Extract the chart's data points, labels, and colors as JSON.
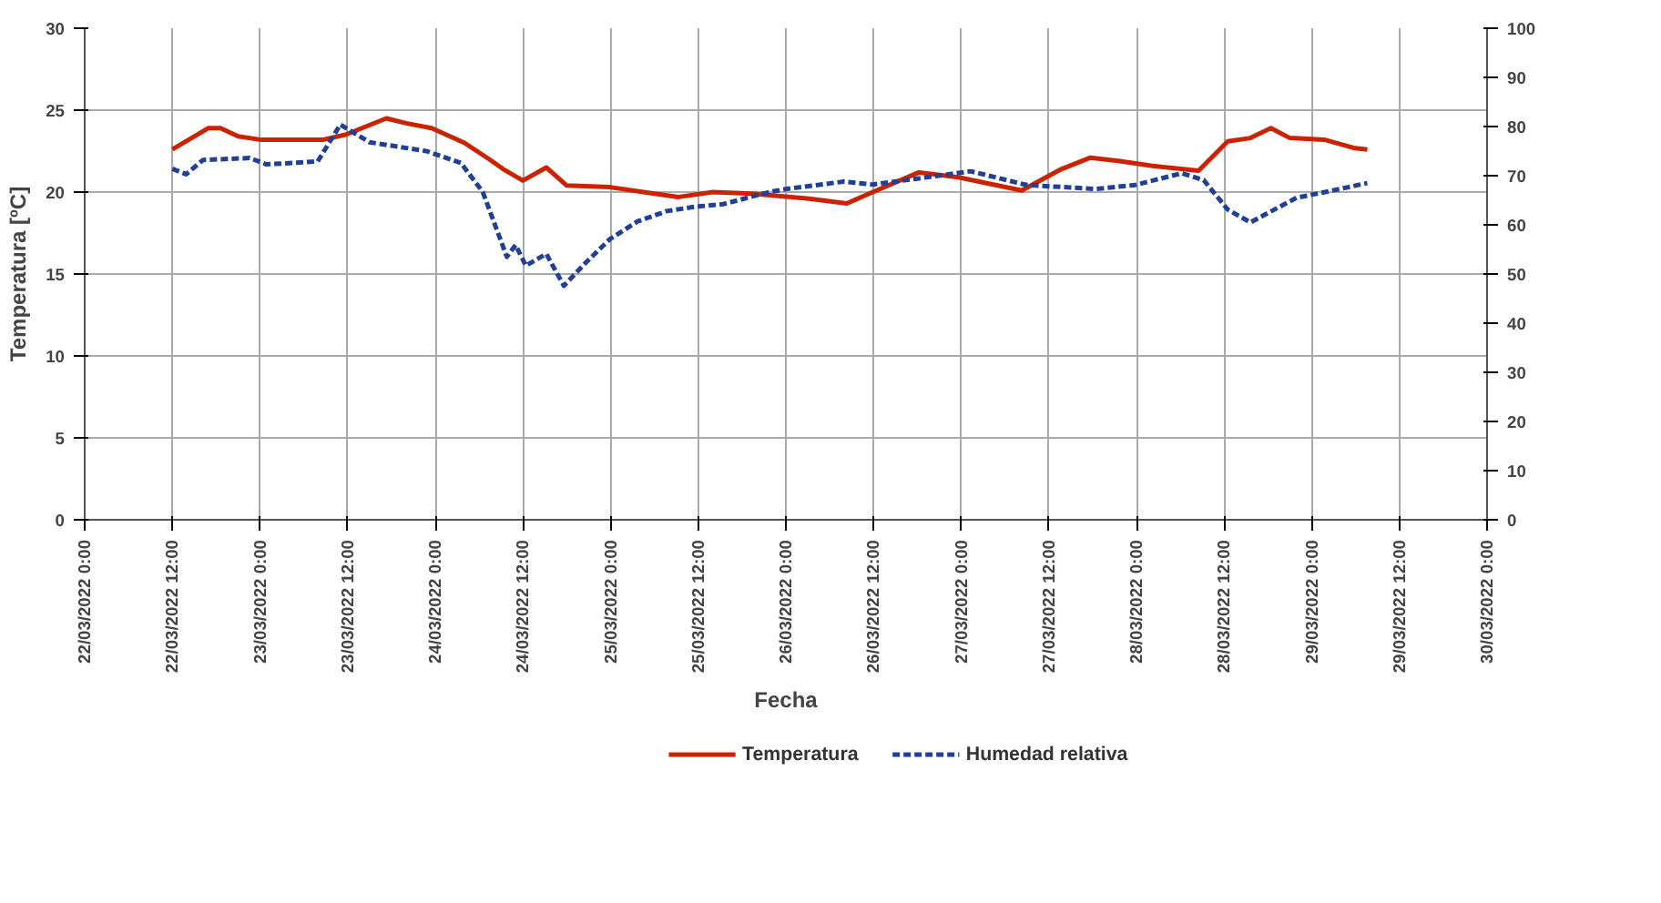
{
  "chart_data": {
    "type": "line",
    "xlabel": "Fecha",
    "ylabel": "Temperatura [ºC]",
    "xlim": [
      "2022-03-22T00:00",
      "2022-03-30T00:00"
    ],
    "xticks": [
      {
        "value": "2022-03-22T00:00",
        "label": "22/03/2022 0:00"
      },
      {
        "value": "2022-03-22T12:00",
        "label": "22/03/2022 12:00"
      },
      {
        "value": "2022-03-23T00:00",
        "label": "23/03/2022 0:00"
      },
      {
        "value": "2022-03-23T12:00",
        "label": "23/03/2022 12:00"
      },
      {
        "value": "2022-03-24T00:00",
        "label": "24/03/2022 0:00"
      },
      {
        "value": "2022-03-24T12:00",
        "label": "24/03/2022 12:00"
      },
      {
        "value": "2022-03-25T00:00",
        "label": "25/03/2022 0:00"
      },
      {
        "value": "2022-03-25T12:00",
        "label": "25/03/2022 12:00"
      },
      {
        "value": "2022-03-26T00:00",
        "label": "26/03/2022 0:00"
      },
      {
        "value": "2022-03-26T12:00",
        "label": "26/03/2022 12:00"
      },
      {
        "value": "2022-03-27T00:00",
        "label": "27/03/2022 0:00"
      },
      {
        "value": "2022-03-27T12:00",
        "label": "27/03/2022 12:00"
      },
      {
        "value": "2022-03-28T00:00",
        "label": "28/03/2022 0:00"
      },
      {
        "value": "2022-03-28T12:00",
        "label": "28/03/2022 12:00"
      },
      {
        "value": "2022-03-29T00:00",
        "label": "29/03/2022 0:00"
      },
      {
        "value": "2022-03-29T12:00",
        "label": "29/03/2022 12:00"
      },
      {
        "value": "2022-03-30T00:00",
        "label": "30/03/2022 0:00"
      }
    ],
    "ylim": [
      0,
      30
    ],
    "yticks": [
      0,
      5,
      10,
      15,
      20,
      25,
      30
    ],
    "y2lim": [
      0,
      100
    ],
    "y2ticks": [
      0,
      10,
      20,
      30,
      40,
      50,
      60,
      70,
      80,
      90,
      100
    ],
    "grid": true,
    "legend": "bottom",
    "series": [
      {
        "name": "Temperatura",
        "color": "#cc2200",
        "line_style": "solid",
        "x": [
          "2022-03-22T12:00",
          "2022-03-22T16:54",
          "2022-03-22T18:36",
          "2022-03-22T21:00",
          "2022-03-23T00:00",
          "2022-03-23T08:42",
          "2022-03-23T11:42",
          "2022-03-23T17:18",
          "2022-03-23T20:00",
          "2022-03-23T23:30",
          "2022-03-24T04:00",
          "2022-03-24T07:24",
          "2022-03-24T09:18",
          "2022-03-24T12:00",
          "2022-03-24T15:12",
          "2022-03-24T18:00",
          "2022-03-24T23:54",
          "2022-03-25T04:30",
          "2022-03-25T09:18",
          "2022-03-25T14:00",
          "2022-03-25T19:24",
          "2022-03-26T03:12",
          "2022-03-26T08:18",
          "2022-03-26T11:54",
          "2022-03-26T18:12",
          "2022-03-26T23:36",
          "2022-03-27T08:18",
          "2022-03-27T13:42",
          "2022-03-27T17:42",
          "2022-03-27T21:30",
          "2022-03-28T02:12",
          "2022-03-28T08:30",
          "2022-03-28T12:30",
          "2022-03-28T15:36",
          "2022-03-28T18:24",
          "2022-03-28T21:00",
          "2022-03-29T01:42",
          "2022-03-29T05:42",
          "2022-03-29T07:36"
        ],
        "values": [
          22.6,
          23.9,
          23.9,
          23.4,
          23.2,
          23.2,
          23.5,
          24.5,
          24.2,
          23.9,
          23.0,
          22.0,
          21.4,
          20.7,
          21.5,
          20.4,
          20.3,
          20.0,
          19.7,
          20.0,
          19.9,
          19.6,
          19.3,
          20.0,
          21.2,
          20.9,
          20.1,
          21.4,
          22.1,
          21.9,
          21.6,
          21.3,
          23.1,
          23.3,
          23.9,
          23.3,
          23.2,
          22.7,
          22.6
        ]
      },
      {
        "name": "Humedad relativa",
        "color": "#1f3f99",
        "line_style": "dashed",
        "axis": "y2",
        "x": [
          "2022-03-22T12:00",
          "2022-03-22T13:54",
          "2022-03-22T16:12",
          "2022-03-22T22:36",
          "2022-03-23T00:54",
          "2022-03-23T07:54",
          "2022-03-23T11:00",
          "2022-03-23T15:00",
          "2022-03-23T22:48",
          "2022-03-24T03:30",
          "2022-03-24T06:30",
          "2022-03-24T09:48",
          "2022-03-24T11:00",
          "2022-03-24T12:24",
          "2022-03-24T15:12",
          "2022-03-24T17:36",
          "2022-03-24T20:36",
          "2022-03-24T23:54",
          "2022-03-25T03:42",
          "2022-03-25T07:42",
          "2022-03-25T11:42",
          "2022-03-25T15:24",
          "2022-03-25T21:48",
          "2022-03-26T00:06",
          "2022-03-26T07:54",
          "2022-03-26T11:54",
          "2022-03-26T18:54",
          "2022-03-27T01:18",
          "2022-03-27T09:00",
          "2022-03-27T18:24",
          "2022-03-27T23:48",
          "2022-03-28T06:12",
          "2022-03-28T09:12",
          "2022-03-28T12:30",
          "2022-03-28T15:36",
          "2022-03-28T21:54",
          "2022-03-29T02:36",
          "2022-03-29T07:36"
        ],
        "values": [
          71.4,
          70.3,
          73.2,
          73.6,
          72.3,
          72.9,
          80.4,
          76.8,
          75.0,
          72.6,
          66.7,
          53.5,
          55.9,
          51.7,
          54.1,
          47.6,
          52.3,
          57.1,
          60.7,
          62.8,
          63.7,
          64.2,
          66.7,
          67.3,
          68.8,
          68.2,
          69.6,
          70.9,
          68.1,
          67.3,
          68.1,
          70.5,
          69.1,
          63.1,
          60.5,
          65.5,
          66.9,
          68.5
        ]
      }
    ]
  }
}
